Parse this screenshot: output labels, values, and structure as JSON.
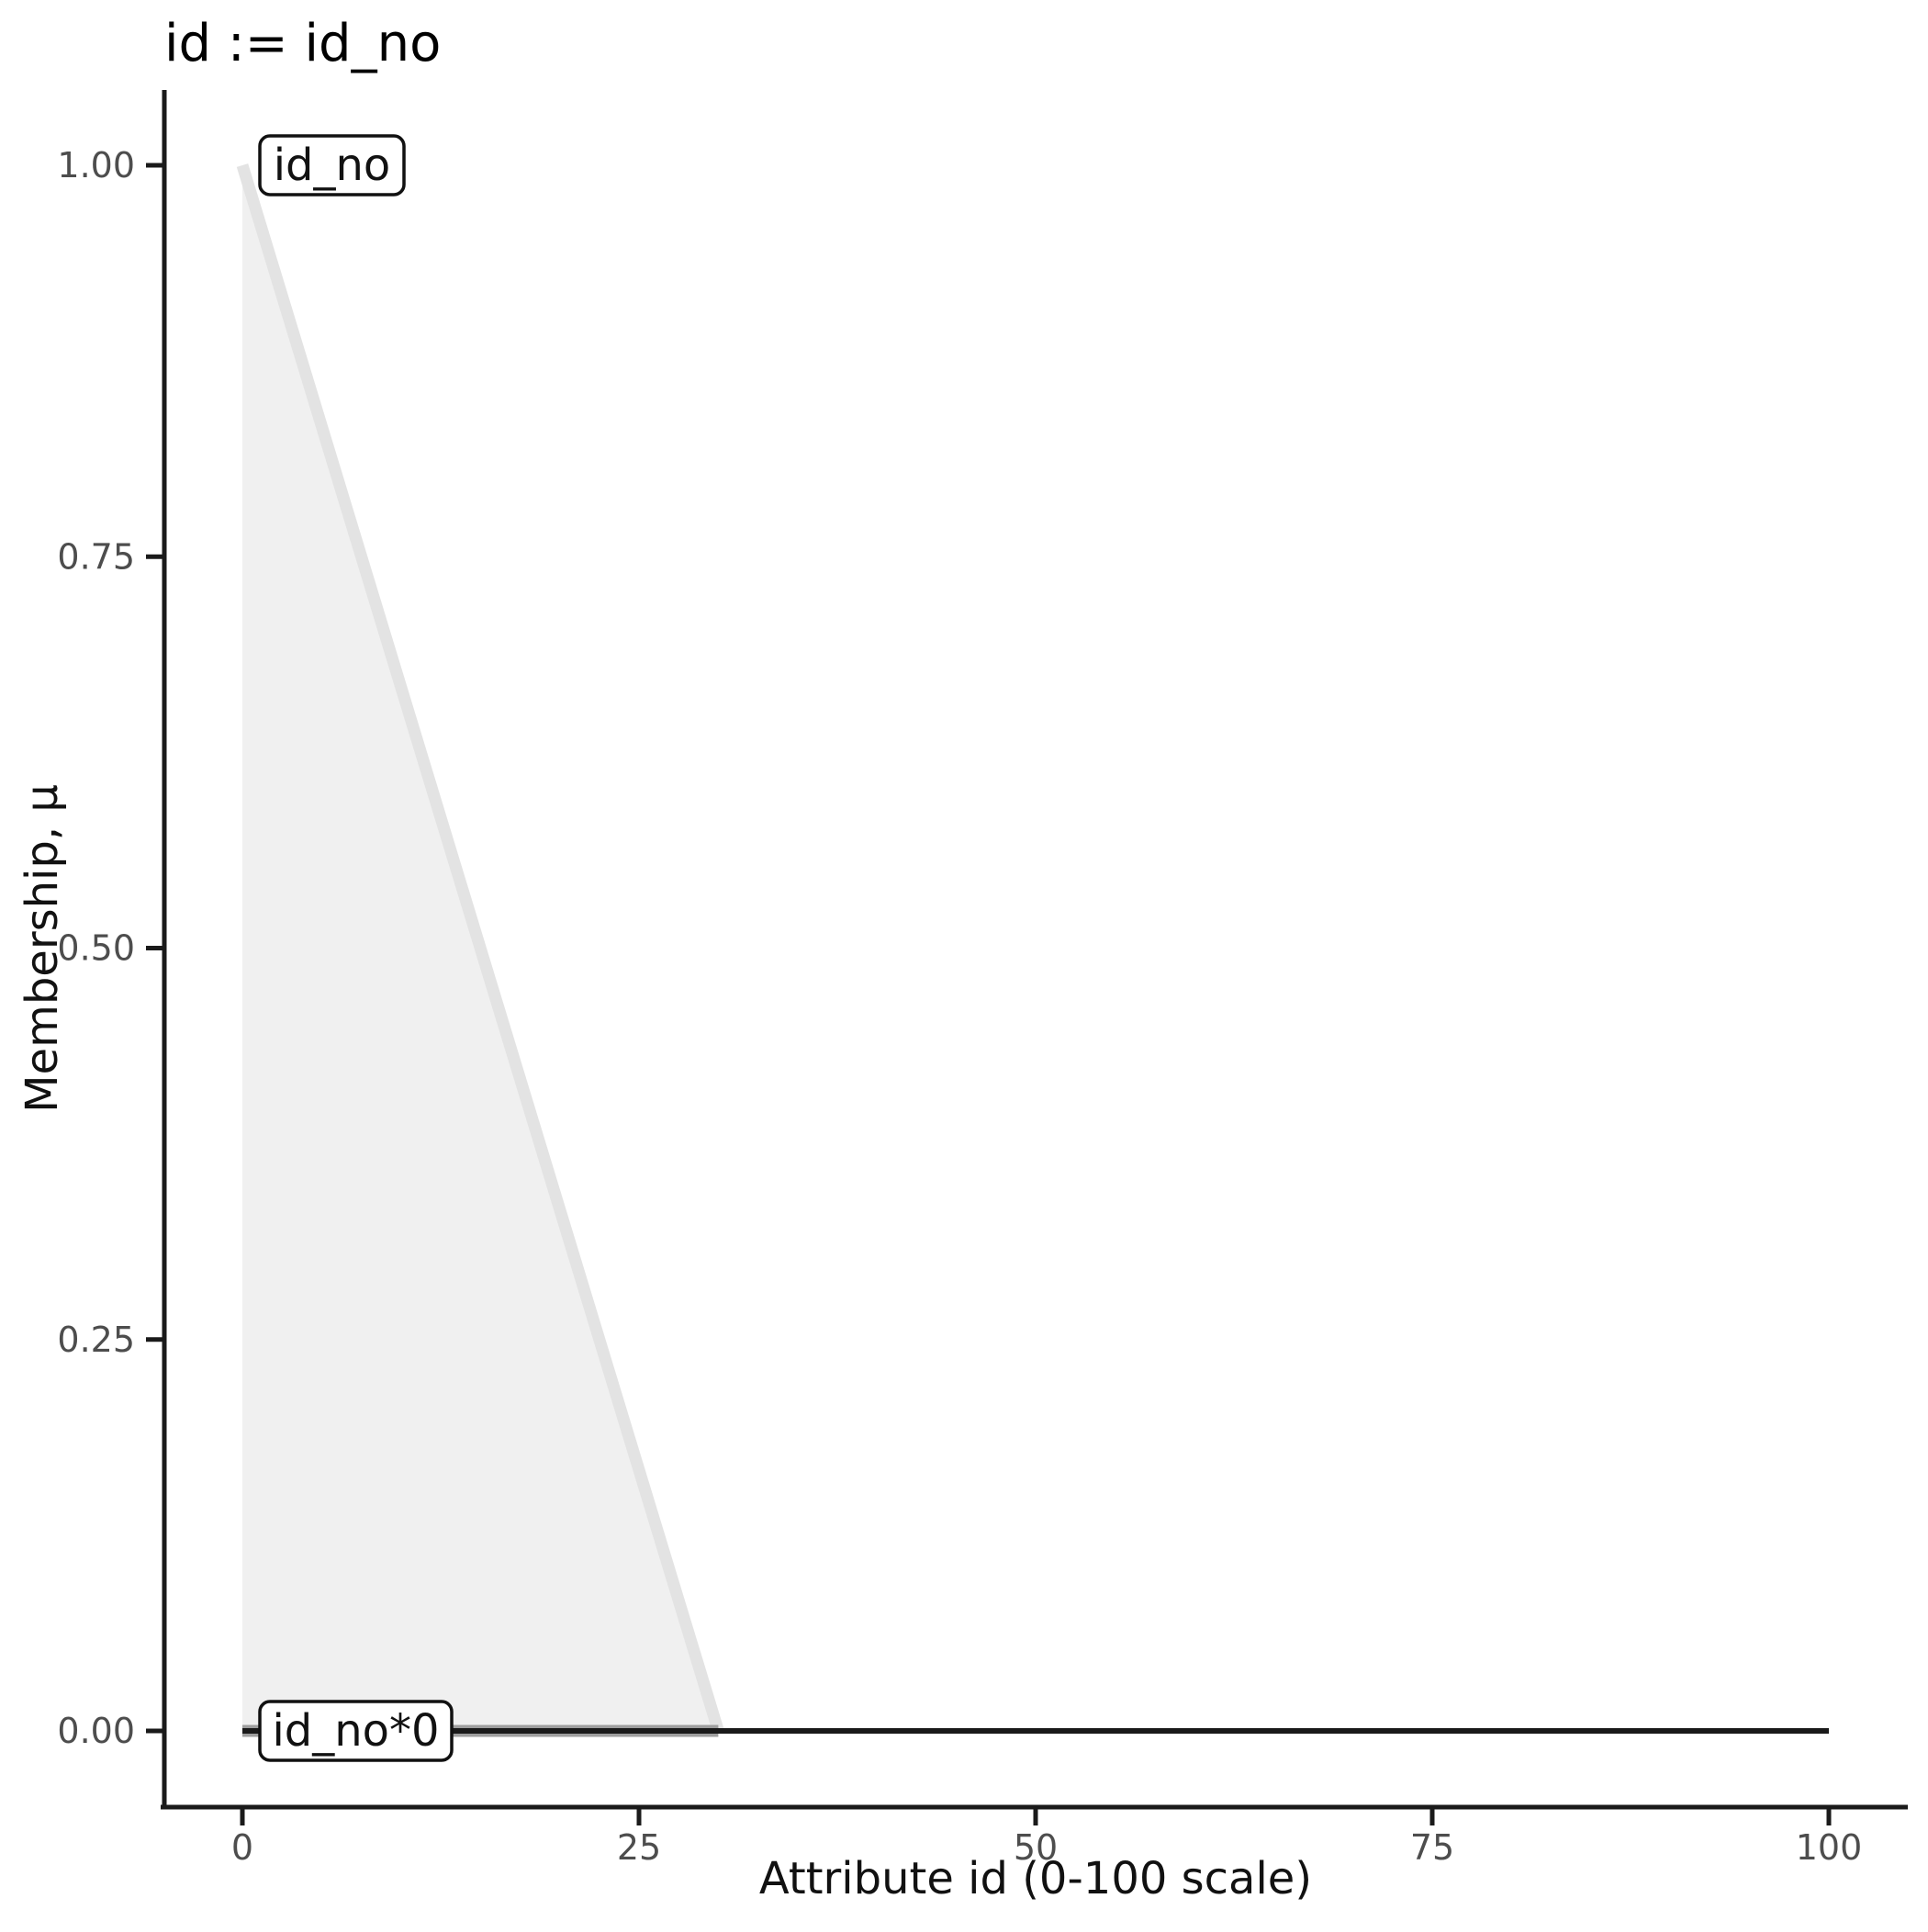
{
  "title": "id := id_no",
  "colors": {
    "background": "#FFFFFF",
    "axis": "#1A1A1A",
    "tick_label": "#4D4D4D",
    "title_text": "#000000",
    "annotation_fill": "#FFFFFF",
    "annotation_border": "#111111",
    "membership_fill": "#F0F0F0",
    "membership_stroke": "#E3E3E3",
    "activated_stroke": "#9E9E9E",
    "output_stroke": "#1A1A1A"
  },
  "chart_data": {
    "type": "area",
    "title": "id := id_no",
    "xlabel": "Attribute id (0-100 scale)",
    "ylabel": "Membership, μ",
    "xlim": [
      0,
      100
    ],
    "ylim": [
      0,
      1
    ],
    "grid": "off",
    "legend": "none",
    "xticks": {
      "values": [
        0,
        25,
        50,
        75,
        100
      ],
      "labels": [
        "0",
        "25",
        "50",
        "75",
        "100"
      ]
    },
    "yticks": {
      "values": [
        0,
        0.25,
        0.5,
        0.75,
        1
      ],
      "labels": [
        "0.00",
        "0.25",
        "0.50",
        "0.75",
        "1.00"
      ]
    },
    "series": [
      {
        "name": "id_no",
        "role": "membership-function",
        "points": [
          [
            0,
            1
          ],
          [
            30,
            0
          ]
        ],
        "stroke": "#E3E3E3",
        "stroke_width": 13,
        "fill": "#F0F0F0",
        "fill_to_y": 0
      },
      {
        "name": "id_no*0",
        "role": "activated-function",
        "points": [
          [
            0,
            0
          ],
          [
            30,
            0
          ]
        ],
        "stroke": "#9E9E9E",
        "stroke_width": 13
      },
      {
        "name": "output",
        "role": "aggregate-output",
        "points": [
          [
            0,
            0
          ],
          [
            100,
            0
          ]
        ],
        "stroke": "#1A1A1A",
        "stroke_width": 6
      }
    ],
    "annotations": [
      {
        "text": "id_no",
        "x": 1.1,
        "y": 1.0
      },
      {
        "text": "id_no*0",
        "x": 1.1,
        "y": 0.0
      }
    ]
  }
}
